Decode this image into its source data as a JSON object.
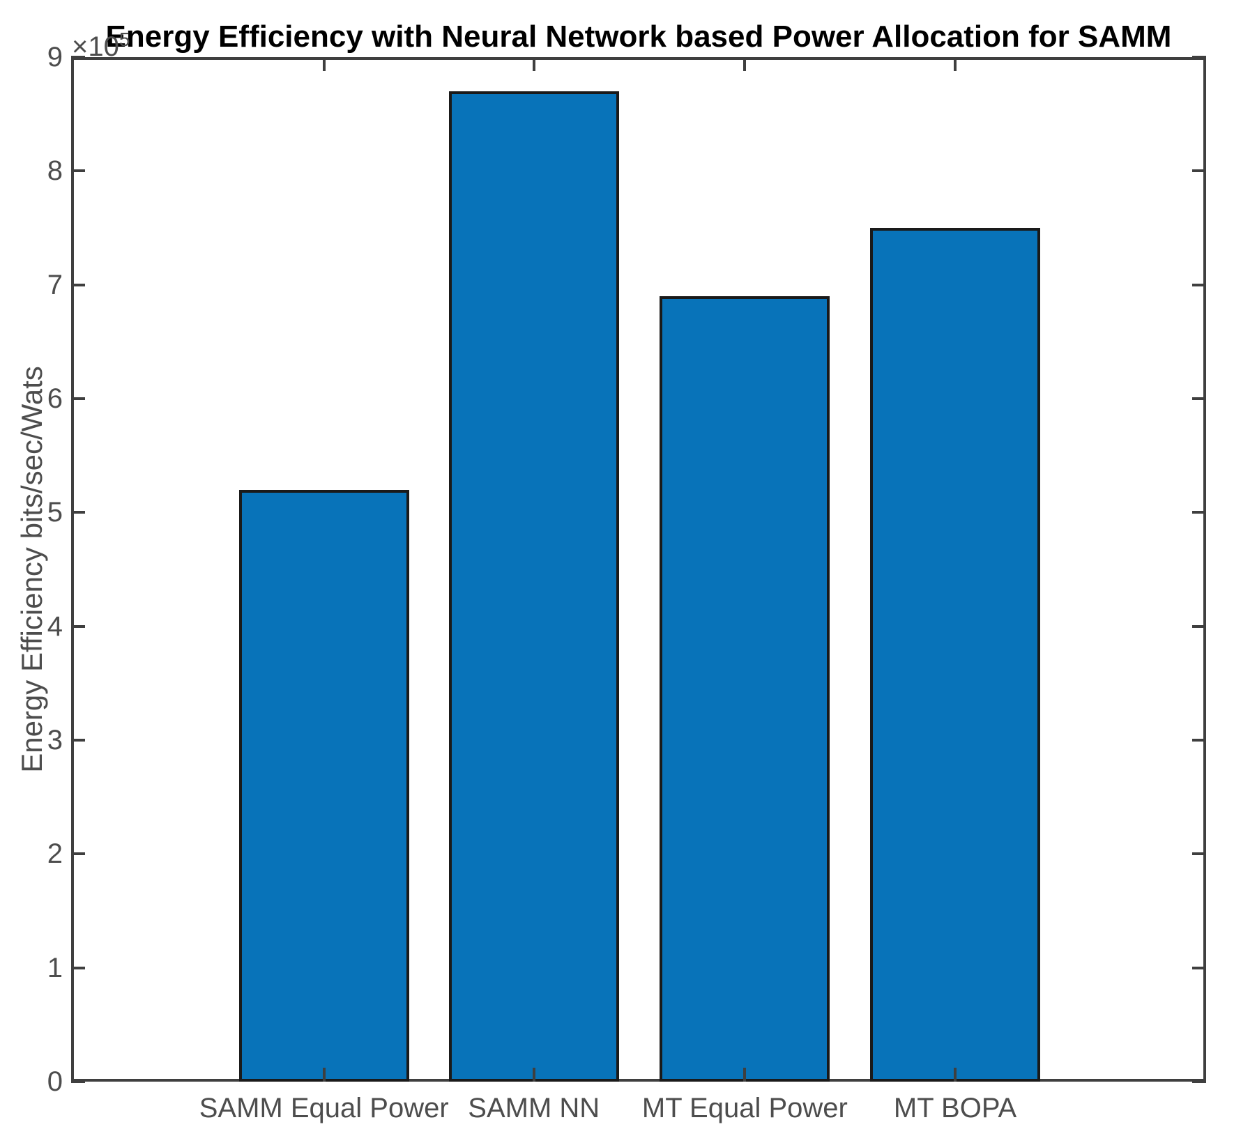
{
  "chart_data": {
    "type": "bar",
    "title": "Energy Efficiency with Neural Network based Power Allocation for SAMM",
    "xlabel": "",
    "ylabel": "Energy Efficiency bits/sec/Wats",
    "y_multiplier_base": "×10",
    "y_multiplier_exp": "5",
    "categories": [
      "SAMM Equal Power",
      "SAMM NN",
      "MT Equal Power",
      "MT BOPA"
    ],
    "values": [
      520000,
      870000,
      690000,
      750000
    ],
    "values_e5": [
      5.2,
      8.7,
      6.9,
      7.5
    ],
    "ylim": [
      0,
      900000
    ],
    "y_ticks": [
      0,
      100000,
      200000,
      300000,
      400000,
      500000,
      600000,
      700000,
      800000,
      900000
    ],
    "y_tick_scale": 100000,
    "y_tick_labels": [
      "0",
      "1",
      "2",
      "3",
      "4",
      "5",
      "6",
      "7",
      "8",
      "9"
    ],
    "grid": false,
    "legend": null,
    "bar_color": "#0873B9",
    "bar_edge_color": "#1a1a1a",
    "axis_color": "#3f3f3f",
    "tick_text_color": "#4d4d4d",
    "title_color": "#000000",
    "bar_center_fractions": [
      0.2228,
      0.4077,
      0.5936,
      0.7789
    ],
    "bar_width_fraction": 0.1499
  }
}
